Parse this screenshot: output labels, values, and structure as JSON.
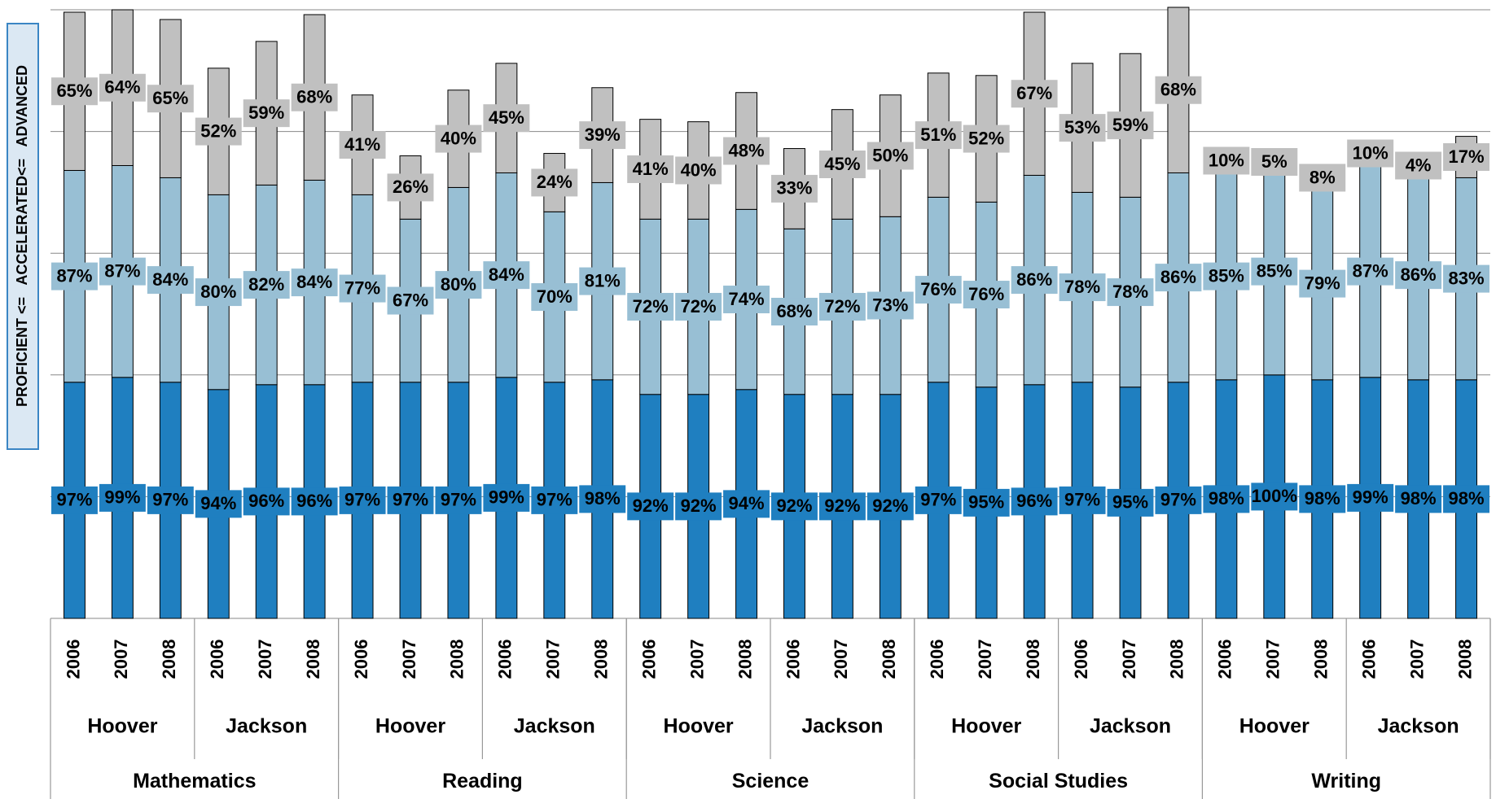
{
  "chart_data": {
    "type": "stacked_bar",
    "y_label": "PROFICIENT <=   ACCELERATED<=   ADVANCED",
    "categories": [
      "2006",
      "2007",
      "2008",
      "2006",
      "2007",
      "2008",
      "2006",
      "2007",
      "2008",
      "2006",
      "2007",
      "2008",
      "2006",
      "2007",
      "2008",
      "2006",
      "2007",
      "2008",
      "2006",
      "2007",
      "2008",
      "2006",
      "2007",
      "2008",
      "2006",
      "2007",
      "2008",
      "2006",
      "2007",
      "2008"
    ],
    "groups": [
      "Hoover",
      "Jackson",
      "Hoover",
      "Jackson",
      "Hoover",
      "Jackson",
      "Hoover",
      "Jackson",
      "Hoover",
      "Jackson"
    ],
    "supergroups": [
      "Mathematics",
      "Reading",
      "Science",
      "Social Studies",
      "Writing"
    ],
    "series": [
      {
        "color": "#1f7fc0",
        "values": [
          97,
          99,
          97,
          94,
          96,
          96,
          97,
          97,
          97,
          99,
          97,
          98,
          92,
          92,
          94,
          92,
          92,
          92,
          97,
          95,
          96,
          97,
          95,
          97,
          98,
          100,
          98,
          99,
          98,
          98
        ],
        "value_labels": [
          "97%",
          "99%",
          "97%",
          "94%",
          "96%",
          "96%",
          "97%",
          "97%",
          "97%",
          "99%",
          "97%",
          "98%",
          "92%",
          "92%",
          "94%",
          "92%",
          "92%",
          "92%",
          "97%",
          "95%",
          "96%",
          "97%",
          "95%",
          "97%",
          "98%",
          "100%",
          "98%",
          "99%",
          "98%",
          "98%"
        ]
      },
      {
        "color": "#98bfd4",
        "values": [
          87,
          87,
          84,
          80,
          82,
          84,
          77,
          67,
          80,
          84,
          70,
          81,
          72,
          72,
          74,
          68,
          72,
          73,
          76,
          76,
          86,
          78,
          78,
          86,
          85,
          85,
          79,
          87,
          86,
          83
        ],
        "value_labels": [
          "87%",
          "87%",
          "84%",
          "80%",
          "82%",
          "84%",
          "77%",
          "67%",
          "80%",
          "84%",
          "70%",
          "81%",
          "72%",
          "72%",
          "74%",
          "68%",
          "72%",
          "73%",
          "76%",
          "76%",
          "86%",
          "78%",
          "78%",
          "86%",
          "85%",
          "85%",
          "79%",
          "87%",
          "86%",
          "83%"
        ]
      },
      {
        "color": "#c0c0c0",
        "values": [
          65,
          64,
          65,
          52,
          59,
          68,
          41,
          26,
          40,
          45,
          24,
          39,
          41,
          40,
          48,
          33,
          45,
          50,
          51,
          52,
          67,
          53,
          59,
          68,
          10,
          5,
          8,
          10,
          4,
          17
        ],
        "value_labels": [
          "65%",
          "64%",
          "65%",
          "52%",
          "59%",
          "68%",
          "41%",
          "26%",
          "40%",
          "45%",
          "24%",
          "39%",
          "41%",
          "40%",
          "48%",
          "33%",
          "45%",
          "50%",
          "51%",
          "52%",
          "67%",
          "53%",
          "59%",
          "68%",
          "10%",
          "5%",
          "8%",
          "10%",
          "4%",
          "17%"
        ]
      }
    ],
    "ylim": [
      0,
      250
    ],
    "yticks": [
      0,
      50,
      100,
      150,
      200,
      250
    ],
    "grid": true
  }
}
